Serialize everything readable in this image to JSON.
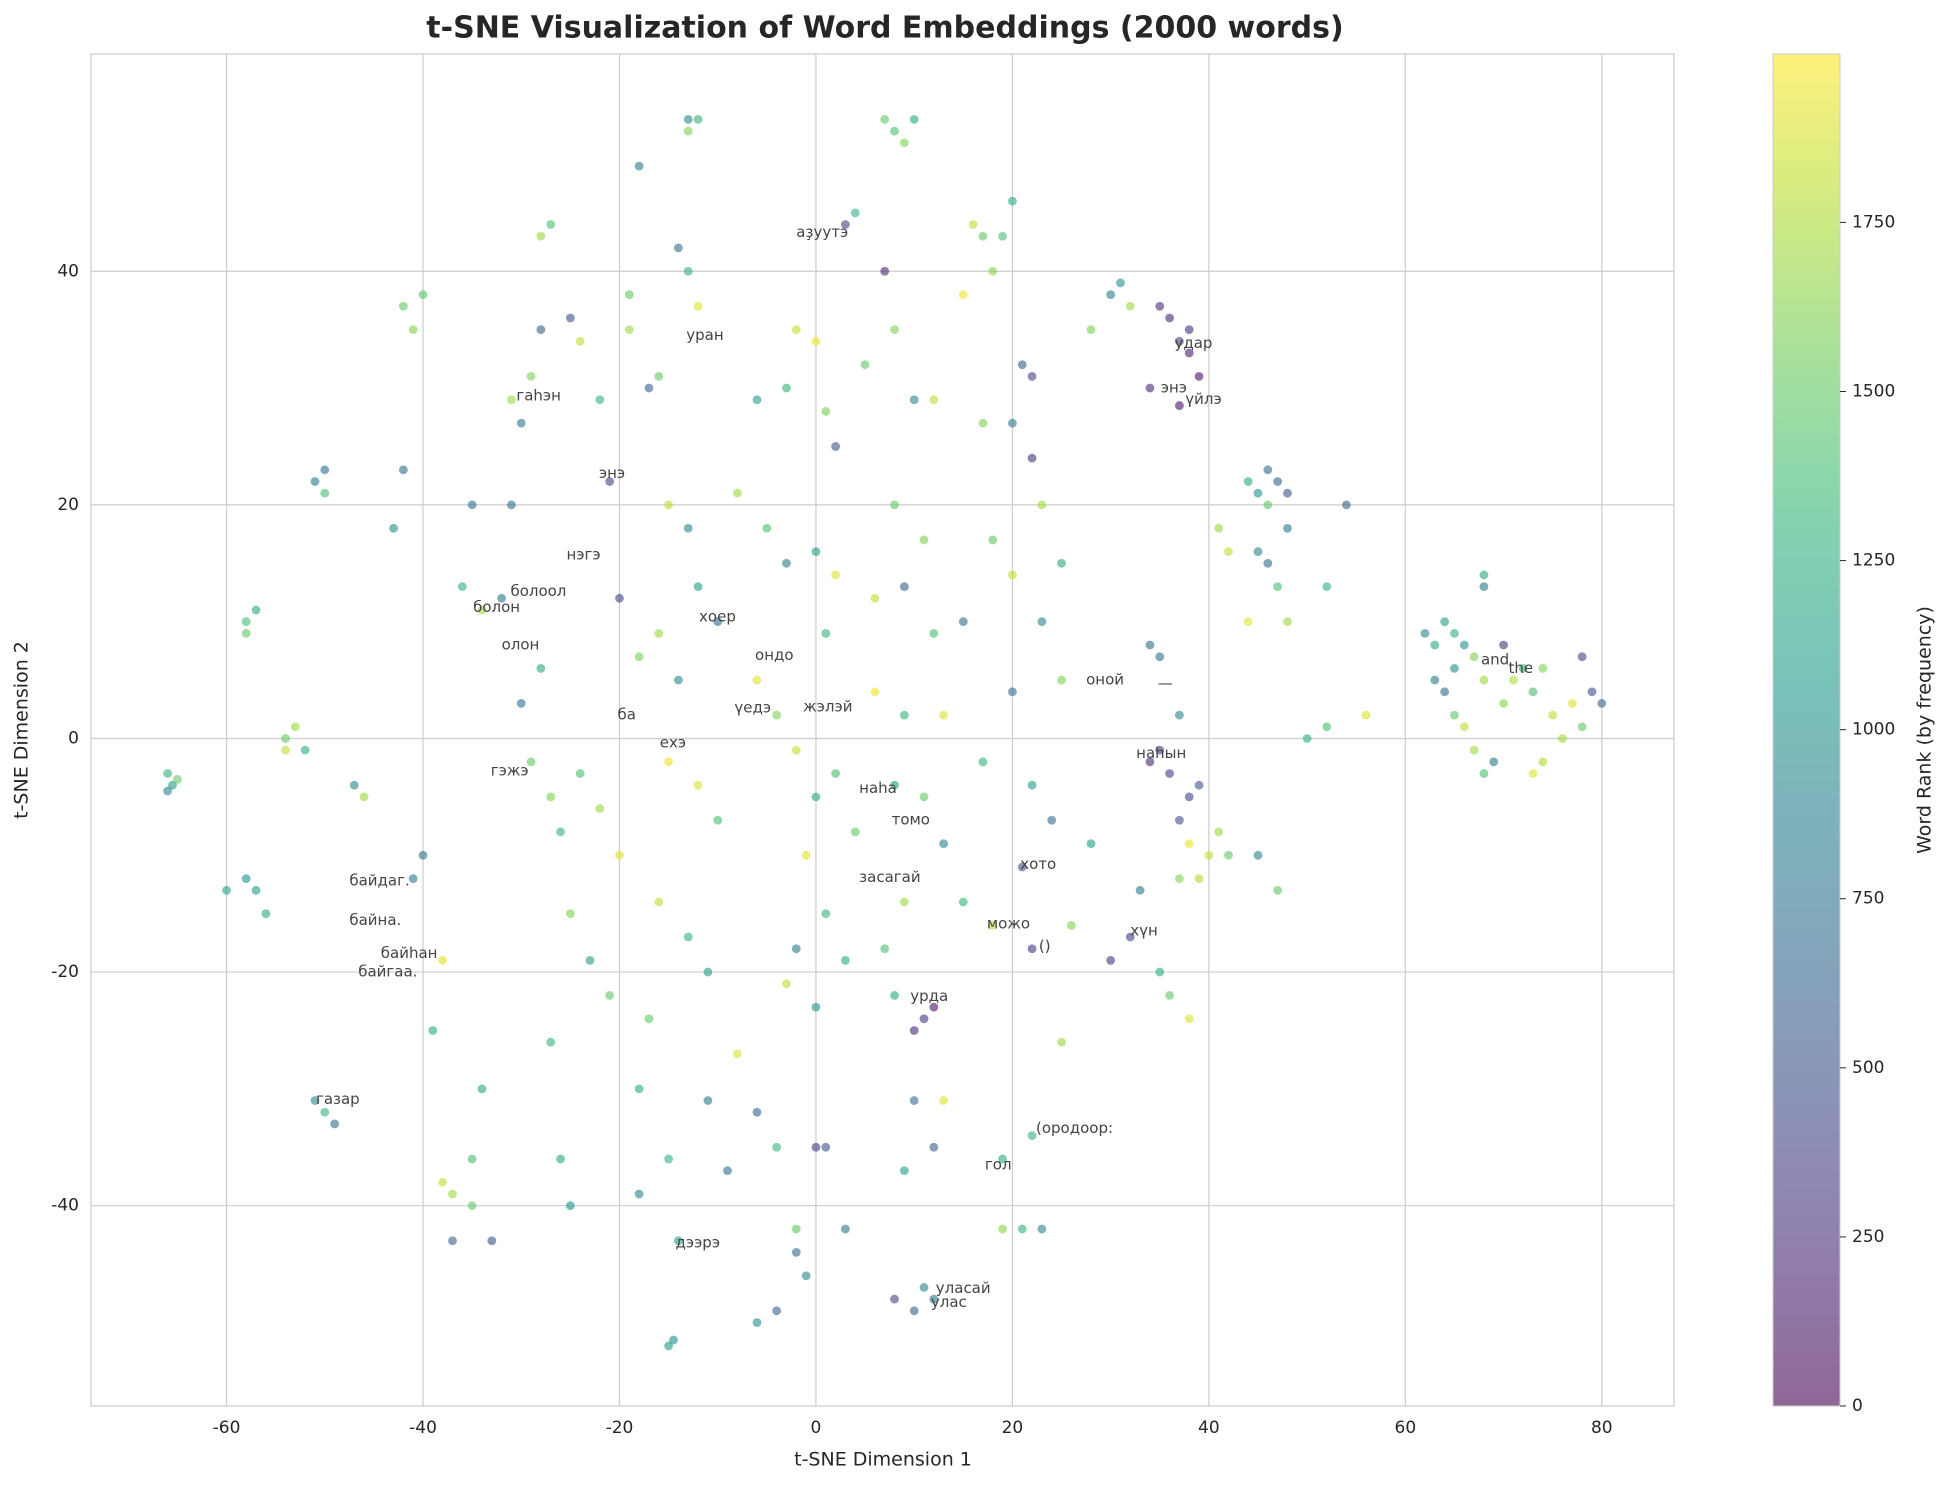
{
  "chart_data": {
    "type": "scatter",
    "title": "t-SNE Visualization of Word Embeddings (2000 words)",
    "x_label": "t-SNE Dimension 1",
    "y_label": "t-SNE Dimension 2",
    "colorbar_label": "Word Rank (by frequency)",
    "colormap": "viridis",
    "alpha": 0.6,
    "grid": true,
    "xlim": [
      -73.8,
      87.35
    ],
    "ylim": [
      -57.15,
      58.6
    ],
    "xticks": [
      -60,
      -40,
      -20,
      0,
      20,
      40,
      60,
      80
    ],
    "yticks": [
      -40,
      -20,
      0,
      20,
      40
    ],
    "clim": [
      0,
      1999
    ],
    "cticks": [
      0,
      250,
      500,
      750,
      1000,
      1250,
      1500,
      1750
    ],
    "x": [
      -66,
      -65.5,
      -66,
      -65,
      -58,
      -57,
      -58,
      -57,
      -58,
      -56,
      -60,
      -53,
      -54,
      -52,
      -54,
      -51,
      -50,
      -50,
      -50,
      -49,
      -51,
      -46,
      -47,
      -42,
      -40,
      -41,
      -42,
      -43,
      -40,
      -41,
      -38,
      -39,
      -38,
      -37,
      -35,
      -37,
      -33,
      -35,
      -34,
      -36,
      -34,
      -35,
      -32,
      -30,
      -28,
      -27,
      -28,
      -28,
      -25,
      -24,
      -31,
      -29,
      -30,
      -31,
      -29,
      -27,
      -26,
      -24,
      -22,
      -20,
      -25,
      -23,
      -21,
      -27,
      -26,
      -25,
      -21,
      -22,
      -18,
      -19,
      -19,
      -17,
      -14,
      -13,
      -12,
      -13,
      -12,
      -13,
      -16,
      -15,
      -13,
      -12,
      -10,
      -16,
      -20,
      -18,
      -14,
      -15,
      -12,
      -10,
      -16,
      -13,
      -11,
      -17,
      -18,
      -18,
      -15,
      -14,
      -15,
      -14.5,
      -9,
      -11,
      -8,
      -6,
      -4,
      -2,
      -1,
      -2,
      0,
      1,
      -4,
      -6,
      3,
      -6,
      -3,
      -2,
      0,
      1,
      2,
      -8,
      -5,
      -3,
      0,
      1,
      2,
      -6,
      -4,
      -2,
      0,
      2,
      4,
      -1,
      1,
      -2,
      3,
      0,
      -3,
      3,
      4,
      7,
      8,
      9,
      10,
      7,
      8,
      5,
      10,
      12,
      8,
      11,
      6,
      9,
      12,
      15,
      6,
      9,
      13,
      8,
      11,
      13,
      9,
      15,
      7,
      11,
      10,
      12,
      8,
      13,
      10,
      12,
      9,
      11,
      12,
      10,
      8,
      16,
      17,
      19,
      20,
      18,
      15,
      21,
      22,
      17,
      20,
      22,
      23,
      25,
      18,
      20,
      23,
      25,
      20,
      17,
      22,
      24,
      21,
      18,
      22,
      26,
      28,
      25,
      22,
      19,
      19,
      21,
      23,
      28,
      31,
      32,
      30,
      35,
      36,
      38,
      38,
      39,
      37,
      34,
      37,
      34,
      35,
      37,
      35,
      36,
      38,
      39,
      34,
      37,
      38,
      40,
      39,
      42,
      37,
      41,
      45,
      47,
      33,
      30,
      32,
      35,
      36,
      38,
      42,
      41,
      44,
      45,
      46,
      47,
      48,
      46,
      45,
      46,
      47,
      48,
      44,
      48,
      50,
      52,
      54,
      56,
      52,
      62,
      63,
      64,
      65,
      66,
      67,
      68,
      64,
      65,
      66,
      67,
      68,
      69,
      70,
      71,
      72,
      73,
      74,
      75,
      76,
      77,
      78,
      79,
      80,
      78,
      70,
      68,
      68,
      73,
      74,
      63,
      65
    ],
    "y": [
      -3,
      -4,
      -4.5,
      -3.5,
      10,
      11,
      9,
      -13,
      -12,
      -15,
      -13,
      1,
      0,
      -1,
      -1,
      22,
      23,
      21,
      -32,
      -33,
      -31,
      -5,
      -4,
      37,
      38,
      35,
      23,
      18,
      -10,
      -12,
      -19,
      -25,
      -38,
      -39,
      -40,
      -43,
      -43,
      -36,
      -30,
      13,
      11,
      20,
      12,
      3,
      6,
      44,
      43,
      35,
      36,
      34,
      29,
      31,
      27,
      20,
      -2,
      -5,
      -8,
      -3,
      -6,
      -10,
      -15,
      -19,
      -22,
      -26,
      -36,
      -40,
      22,
      29,
      49,
      38,
      35,
      30,
      42,
      40,
      37,
      53,
      53,
      52,
      31,
      20,
      18,
      13,
      10,
      9,
      12,
      7,
      5,
      -2,
      -4,
      -7,
      -14,
      -17,
      -20,
      -24,
      -30,
      -39,
      -36,
      -43,
      -52,
      -51.5,
      -37,
      -31,
      -27,
      -32,
      -35,
      -44,
      -46,
      -42,
      -35,
      -35,
      -49,
      -50,
      -42,
      29,
      30,
      35,
      34,
      28,
      25,
      21,
      18,
      15,
      16,
      9,
      14,
      5,
      2,
      -1,
      -5,
      -3,
      -8,
      -10,
      -15,
      -18,
      -19,
      -23,
      -21,
      44,
      45,
      53,
      52,
      51,
      53,
      40,
      35,
      32,
      29,
      29,
      20,
      17,
      12,
      13,
      9,
      10,
      4,
      2,
      2,
      -4,
      -5,
      -9,
      -14,
      -14,
      -18,
      -24,
      -25,
      -23,
      -22,
      -31,
      -31,
      -35,
      -37,
      -47,
      -48,
      -49,
      -48,
      44,
      43,
      43,
      46,
      40,
      38,
      32,
      31,
      27,
      27,
      24,
      20,
      15,
      17,
      14,
      10,
      5,
      4,
      -2,
      -4,
      -7,
      -11,
      -16,
      -18,
      -16,
      -9,
      -26,
      -34,
      -36,
      -42,
      -42,
      -42,
      35,
      39,
      37,
      38,
      37,
      36,
      35,
      33,
      31,
      34,
      30,
      28.5,
      8,
      7,
      2,
      -1,
      -3,
      -5,
      -4,
      -2,
      -7,
      -9,
      -10,
      -12,
      -10,
      -12,
      -8,
      -10,
      -13,
      -13,
      -19,
      -17,
      -20,
      -22,
      -24,
      16,
      18,
      22,
      21,
      23,
      22,
      21,
      20,
      16,
      15,
      13,
      18,
      10,
      10,
      0,
      1,
      20,
      2,
      13,
      9,
      8,
      10,
      9,
      8,
      7,
      5,
      4,
      2,
      1,
      -1,
      -3,
      -2,
      3,
      5,
      6,
      4,
      6,
      2,
      0,
      3,
      1,
      4,
      3,
      7,
      8,
      13,
      14,
      -3,
      -2,
      5,
      6
    ],
    "rank": [
      1300,
      1100,
      900,
      1500,
      1400,
      1200,
      1500,
      1100,
      1000,
      1200,
      1150,
      1700,
      1500,
      1250,
      1800,
      800,
      700,
      1400,
      1300,
      700,
      900,
      1700,
      900,
      1500,
      1450,
      1600,
      700,
      1000,
      700,
      800,
      1900,
      1200,
      1800,
      1700,
      1500,
      600,
      500,
      1400,
      1200,
      1250,
      1700,
      700,
      800,
      700,
      1200,
      1400,
      1700,
      600,
      500,
      1800,
      1700,
      1600,
      800,
      700,
      1500,
      1600,
      1300,
      1400,
      1700,
      1900,
      1600,
      1100,
      1500,
      1300,
      1200,
      1000,
      400,
      1300,
      800,
      1500,
      1700,
      600,
      700,
      1300,
      1900,
      900,
      1300,
      1600,
      1500,
      1800,
      900,
      1100,
      700,
      1700,
      400,
      1600,
      900,
      1950,
      1900,
      1400,
      1800,
      1300,
      1100,
      1500,
      1200,
      900,
      1300,
      1100,
      1100,
      1000,
      700,
      800,
      1900,
      600,
      1300,
      700,
      900,
      1500,
      300,
      500,
      600,
      1000,
      800,
      1100,
      1300,
      1800,
      1950,
      1600,
      500,
      1700,
      1400,
      800,
      1100,
      1300,
      1900,
      1900,
      1600,
      1800,
      1200,
      1400,
      1500,
      1900,
      1300,
      800,
      1200,
      1000,
      1800,
      400,
      1300,
      1500,
      1400,
      1600,
      1200,
      200,
      1600,
      1500,
      900,
      1800,
      1500,
      1600,
      1800,
      600,
      1400,
      700,
      1950,
      1300,
      1900,
      1100,
      1500,
      900,
      1700,
      1300,
      1400,
      300,
      200,
      100,
      1200,
      1900,
      700,
      600,
      1100,
      900,
      800,
      600,
      400,
      1800,
      1500,
      1400,
      1200,
      1650,
      1950,
      600,
      400,
      1600,
      800,
      300,
      1700,
      1200,
      1500,
      1800,
      900,
      1600,
      700,
      1300,
      1100,
      700,
      500,
      1800,
      300,
      1600,
      1100,
      1700,
      1300,
      1200,
      1650,
      1300,
      900,
      1600,
      1000,
      1700,
      800,
      250,
      200,
      300,
      150,
      100,
      350,
      200,
      100,
      700,
      800,
      900,
      300,
      350,
      400,
      500,
      200,
      450,
      1950,
      1800,
      1750,
      1500,
      1600,
      1700,
      900,
      1500,
      800,
      300,
      400,
      1200,
      1500,
      1900,
      1800,
      1700,
      1200,
      1000,
      700,
      600,
      500,
      1500,
      900,
      700,
      1400,
      800,
      1900,
      1700,
      1250,
      1400,
      600,
      1900,
      1300,
      900,
      1200,
      1100,
      1300,
      1000,
      1600,
      1700,
      700,
      1500,
      1800,
      1700,
      1400,
      800,
      1650,
      1750,
      1300,
      1400,
      1600,
      1800,
      1700,
      1900,
      1500,
      500,
      600,
      400,
      300,
      800,
      1200,
      1900,
      1750,
      800,
      1000
    ],
    "annotations": [
      {
        "text": "аҙуутэ",
        "x": -2,
        "y": 43.3
      },
      {
        "text": "уран",
        "x": -13.2,
        "y": 34.5
      },
      {
        "text": "гаhэн",
        "x": -30.5,
        "y": 29.3
      },
      {
        "text": "энэ",
        "x": -22.1,
        "y": 22.7
      },
      {
        "text": "нэгэ",
        "x": -25.4,
        "y": 15.7
      },
      {
        "text": "болоол",
        "x": -31.1,
        "y": 12.6
      },
      {
        "text": "болон",
        "x": -34.9,
        "y": 11.2
      },
      {
        "text": "олон",
        "x": -32,
        "y": 8
      },
      {
        "text": "хоер",
        "x": -11.9,
        "y": 10.4
      },
      {
        "text": "ондо",
        "x": -6.2,
        "y": 7.1
      },
      {
        "text": "ба",
        "x": -20.2,
        "y": 2
      },
      {
        "text": "үедэ",
        "x": -8.3,
        "y": 2.6
      },
      {
        "text": "жэлэй",
        "x": -1.3,
        "y": 2.7
      },
      {
        "text": "ехэ",
        "x": -15.9,
        "y": -0.4
      },
      {
        "text": "гэжэ",
        "x": -33.1,
        "y": -2.8
      },
      {
        "text": "наhа",
        "x": 4.4,
        "y": -4.3
      },
      {
        "text": "томо",
        "x": 7.7,
        "y": -7
      },
      {
        "text": "хото",
        "x": 20.8,
        "y": -10.8
      },
      {
        "text": "засагай",
        "x": 4.4,
        "y": -11.9
      },
      {
        "text": "можо",
        "x": 17.4,
        "y": -15.9
      },
      {
        "text": "()",
        "x": 22.7,
        "y": -17.8
      },
      {
        "text": "хүн",
        "x": 32,
        "y": -16.5
      },
      {
        "text": "урда",
        "x": 9.6,
        "y": -22.1
      },
      {
        "text": "(ородоор:",
        "x": 22.4,
        "y": -33.4
      },
      {
        "text": "гол",
        "x": 17.2,
        "y": -36.5
      },
      {
        "text": "газар",
        "x": -50.9,
        "y": -30.9
      },
      {
        "text": "байдаг.",
        "x": -47.5,
        "y": -12.2
      },
      {
        "text": "байна.",
        "x": -47.5,
        "y": -15.6
      },
      {
        "text": "байhан",
        "x": -44.3,
        "y": -18.4
      },
      {
        "text": "байгаа.",
        "x": -46.6,
        "y": -20
      },
      {
        "text": "дээрэ",
        "x": -14.3,
        "y": -43.2
      },
      {
        "text": "уласай",
        "x": 12.2,
        "y": -47.1
      },
      {
        "text": "улас",
        "x": 11.7,
        "y": -48.3
      },
      {
        "text": "оной",
        "x": 27.5,
        "y": 5
      },
      {
        "text": "—",
        "x": 34.8,
        "y": 4.7
      },
      {
        "text": "наhын",
        "x": 32.6,
        "y": -1.3
      },
      {
        "text": "энэ",
        "x": 35.1,
        "y": 30
      },
      {
        "text": "үйлэ",
        "x": 37.6,
        "y": 29
      },
      {
        "text": "удар",
        "x": 36.5,
        "y": 33.8
      },
      {
        "text": "and",
        "x": 67.7,
        "y": 6.7
      },
      {
        "text": "the",
        "x": 70.5,
        "y": 6
      }
    ]
  }
}
